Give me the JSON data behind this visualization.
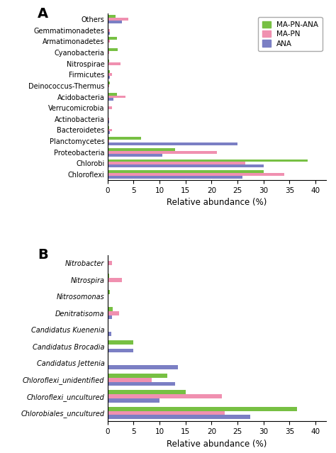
{
  "panel_A": {
    "categories": [
      "Chloroflexi",
      "Chlorobi",
      "Proteobacteria",
      "Planctomycetes",
      "Bacteroidetes",
      "Actinobacteria",
      "Verrucomicrobia",
      "Acidobacteria",
      "Deinococcus-Thermus",
      "Firmicutes",
      "Nitrospirae",
      "Cyanobacteria",
      "Armatimonadetes",
      "Gemmatimonadetes",
      "Others"
    ],
    "MA_PN_ANA": [
      30.0,
      38.5,
      13.0,
      6.5,
      0.3,
      0.2,
      0.1,
      1.8,
      0.5,
      0.5,
      0.3,
      2.0,
      1.8,
      0.1,
      1.5
    ],
    "MA_PN": [
      34.0,
      26.5,
      21.0,
      0.3,
      0.8,
      0.3,
      0.8,
      3.5,
      0.3,
      0.8,
      2.5,
      0.3,
      0.5,
      0.4,
      4.0
    ],
    "ANA": [
      26.0,
      30.0,
      10.5,
      25.0,
      0.5,
      0.3,
      0.1,
      1.2,
      0.2,
      0.5,
      0.2,
      0.2,
      0.2,
      0.5,
      2.8
    ],
    "xlabel": "Relative abundance (%)",
    "xlim": [
      0,
      42
    ],
    "xticks": [
      0,
      5,
      10,
      15,
      20,
      25,
      30,
      35,
      40
    ]
  },
  "panel_B": {
    "categories": [
      "Chlorobiales_uncultured",
      "Chloroflexi_uncultured",
      "Chloroflexi_unidentified",
      "Candidatus Jettenia",
      "Candidatus Brocadia",
      "Candidatus Kuenenia",
      "Denitratisoma",
      "Nitrosomonas",
      "Nitrospira",
      "Nitrobacter"
    ],
    "MA_PN_ANA": [
      36.5,
      15.0,
      11.5,
      0.1,
      5.0,
      0.05,
      1.0,
      0.5,
      0.3,
      0.1
    ],
    "MA_PN": [
      22.5,
      22.0,
      8.5,
      0.1,
      0.1,
      0.05,
      2.2,
      0.1,
      2.8,
      0.8
    ],
    "ANA": [
      27.5,
      10.0,
      13.0,
      13.5,
      5.0,
      0.7,
      0.8,
      0.1,
      0.1,
      0.1
    ],
    "xlabel": "Relative abundance (%)",
    "xlim": [
      0,
      42
    ],
    "xticks": [
      0,
      5,
      10,
      15,
      20,
      25,
      30,
      35,
      40
    ]
  },
  "colors": {
    "MA_PN_ANA": "#77C043",
    "MA_PN": "#F090B0",
    "ANA": "#7B7FC4"
  },
  "bar_height": 0.25,
  "label_fontsize": 7.0,
  "tick_fontsize": 7.5,
  "axis_label_fontsize": 8.5
}
